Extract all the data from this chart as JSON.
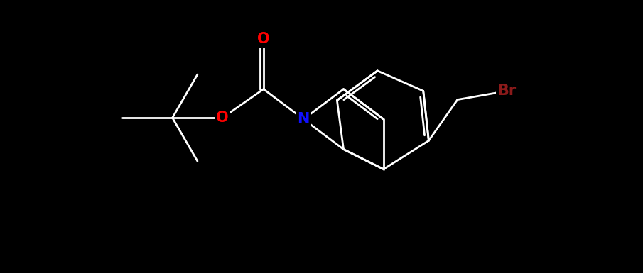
{
  "background_color": "#000000",
  "bond_color": "#ffffff",
  "N_color": "#1010ff",
  "O_color": "#ff0000",
  "Br_color": "#8b1a1a",
  "bond_lw": 2.0,
  "font_size": 15,
  "figsize": [
    9.05,
    3.85
  ],
  "dpi": 100,
  "xlim": [
    0,
    10
  ],
  "ylim": [
    0,
    4.26
  ],
  "bl": 0.78
}
